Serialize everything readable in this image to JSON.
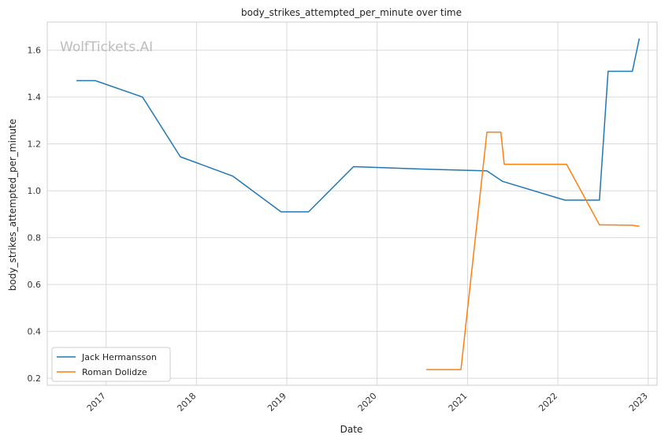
{
  "watermark": "WolfTickets.AI",
  "chart_data": {
    "type": "line",
    "title": "body_strikes_attempted_per_minute over time",
    "xlabel": "Date",
    "ylabel": "body_strikes_attempted_per_minute",
    "x_type": "date",
    "xlim": [
      "2016-05-08",
      "2023-02-06"
    ],
    "ylim": [
      0.17,
      1.72
    ],
    "x_ticks": [
      "2017-01-01",
      "2018-01-01",
      "2019-01-01",
      "2020-01-01",
      "2021-01-01",
      "2022-01-01",
      "2023-01-01"
    ],
    "x_tick_labels": [
      "2017",
      "2018",
      "2019",
      "2020",
      "2021",
      "2022",
      "2023"
    ],
    "y_ticks": [
      0.2,
      0.4,
      0.6,
      0.8,
      1.0,
      1.2,
      1.4,
      1.6
    ],
    "y_tick_labels": [
      "0.2",
      "0.4",
      "0.6",
      "0.8",
      "1.0",
      "1.2",
      "1.4",
      "1.6"
    ],
    "grid": true,
    "legend_position": "bottom-left",
    "series": [
      {
        "name": "Jack Hermansson",
        "color": "#1f77b4",
        "x": [
          "2016-09-03",
          "2016-11-19",
          "2017-05-28",
          "2017-10-28",
          "2018-05-27",
          "2018-12-09",
          "2019-03-30",
          "2019-09-28",
          "2020-07-18",
          "2021-03-20",
          "2021-05-22",
          "2022-01-29",
          "2022-06-18",
          "2022-07-23",
          "2022-10-29",
          "2022-11-26"
        ],
        "y": [
          1.47,
          1.47,
          1.4,
          1.145,
          1.063,
          0.91,
          0.91,
          1.103,
          1.092,
          1.085,
          1.04,
          0.96,
          0.96,
          1.51,
          1.51,
          1.65
        ]
      },
      {
        "name": "Roman Dolidze",
        "color": "#ff7f0e",
        "x": [
          "2020-07-18",
          "2020-12-05",
          "2021-03-20",
          "2021-05-15",
          "2021-05-29",
          "2022-02-05",
          "2022-06-18",
          "2022-10-29",
          "2022-11-26"
        ],
        "y": [
          0.237,
          0.237,
          1.25,
          1.25,
          1.113,
          1.113,
          0.855,
          0.853,
          0.848
        ]
      }
    ]
  }
}
